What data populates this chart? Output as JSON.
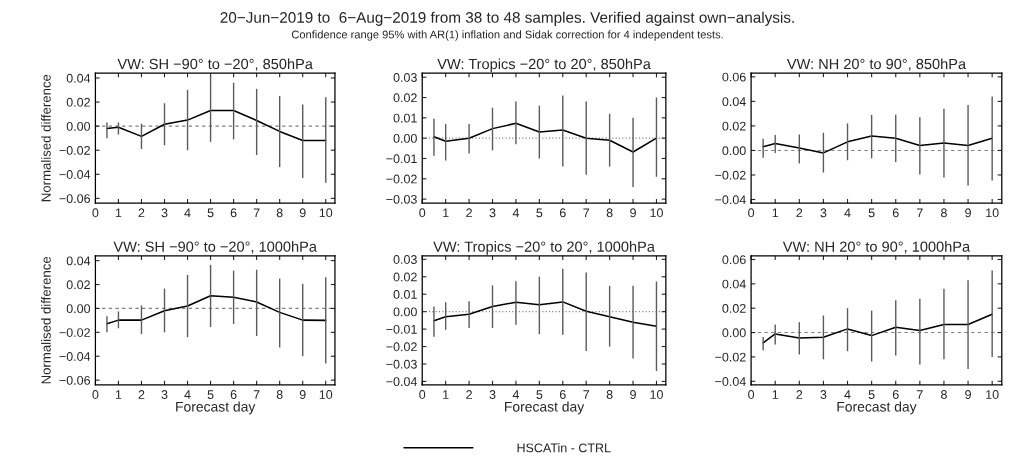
{
  "chart_data": [
    {
      "type": "line",
      "title": "VW: SH −90° to −20°, 850hPa",
      "ylabel": "Normalised difference",
      "annotations": [
        "20−Jun−2019 to  6−Aug−2019 from 38 to 48 samples. Verified against own−analysis.",
        "Confidence range 95% with AR(1) inflation and Sidak correction for 4 independent tests."
      ],
      "legend": "bottom",
      "grid": false,
      "marker": "none",
      "line_style": "solid",
      "x": [
        0.5,
        1,
        2,
        3,
        4,
        5,
        6,
        7,
        8,
        9,
        10
      ],
      "series": [
        {
          "name": "HSCATin - CTRL",
          "color": "#000000",
          "values": [
            -0.002,
            -0.001,
            -0.0085,
            0.0016,
            0.005,
            0.013,
            0.013,
            0.0047,
            -0.0044,
            -0.012,
            -0.012
          ],
          "errors": [
            [
              -0.01,
              0.003
            ],
            [
              -0.007,
              0.003
            ],
            [
              -0.019,
              0.002
            ],
            [
              -0.016,
              0.019
            ],
            [
              -0.02,
              0.03
            ],
            [
              -0.013,
              0.042
            ],
            [
              -0.011,
              0.036
            ],
            [
              -0.024,
              0.031
            ],
            [
              -0.034,
              0.025
            ],
            [
              -0.043,
              0.018
            ],
            [
              -0.047,
              0.024
            ]
          ]
        }
      ],
      "xlim": [
        0,
        10.4
      ],
      "xticks": [
        0,
        1,
        2,
        3,
        4,
        5,
        6,
        7,
        8,
        9,
        10
      ],
      "ylim": [
        -0.064,
        0.044
      ],
      "yticks": [
        {
          "value": -0.06,
          "label": "−0.06"
        },
        {
          "value": -0.04,
          "label": "−0.04"
        },
        {
          "value": -0.02,
          "label": "−0.02"
        },
        {
          "value": 0,
          "label": "0.00"
        },
        {
          "value": 0.02,
          "label": "0.02"
        },
        {
          "value": 0.04,
          "label": "0.04"
        }
      ],
      "ref_lines": [
        {
          "axis": "y",
          "value": 0,
          "color": "#808080",
          "line_style": "dashed"
        }
      ]
    },
    {
      "type": "line",
      "title": "VW: Tropics −20° to 20°, 850hPa",
      "grid": false,
      "marker": "none",
      "line_style": "solid",
      "x": [
        0.5,
        1,
        2,
        3,
        4,
        5,
        6,
        7,
        8,
        9,
        10
      ],
      "series": [
        {
          "color": "#000000",
          "values": [
            0.0007,
            -0.0015,
            0.0,
            0.0047,
            0.0073,
            0.003,
            0.004,
            0.0,
            -0.001,
            -0.0068,
            0.0
          ],
          "errors": [
            [
              -0.0086,
              0.0096
            ],
            [
              -0.011,
              0.007
            ],
            [
              -0.0075,
              0.007
            ],
            [
              -0.006,
              0.015
            ],
            [
              -0.003,
              0.018
            ],
            [
              -0.01,
              0.016
            ],
            [
              -0.014,
              0.021
            ],
            [
              -0.018,
              0.018
            ],
            [
              -0.014,
              0.012
            ],
            [
              -0.024,
              0.01
            ],
            [
              -0.019,
              0.02
            ]
          ]
        }
      ],
      "xlim": [
        0,
        10.4
      ],
      "xticks": [
        0,
        1,
        2,
        3,
        4,
        5,
        6,
        7,
        8,
        9,
        10
      ],
      "ylim": [
        -0.032,
        0.032
      ],
      "yticks": [
        {
          "value": -0.03,
          "label": "−0.03"
        },
        {
          "value": -0.02,
          "label": "−0.02"
        },
        {
          "value": -0.01,
          "label": "−0.01"
        },
        {
          "value": 0,
          "label": "0.00"
        },
        {
          "value": 0.01,
          "label": "0.01"
        },
        {
          "value": 0.02,
          "label": "0.02"
        },
        {
          "value": 0.03,
          "label": "0.03"
        }
      ],
      "ref_lines": [
        {
          "axis": "y",
          "value": 0,
          "color": "#808080",
          "line_style": "dotted"
        }
      ]
    },
    {
      "type": "line",
      "title": "VW: NH 20° to 90°, 850hPa",
      "grid": false,
      "marker": "none",
      "line_style": "solid",
      "x": [
        0.5,
        1,
        2,
        3,
        4,
        5,
        6,
        7,
        8,
        9,
        10
      ],
      "series": [
        {
          "color": "#000000",
          "values": [
            0.003,
            0.0057,
            0.002,
            -0.002,
            0.007,
            0.0117,
            0.01,
            0.004,
            0.006,
            0.004,
            0.01
          ],
          "errors": [
            [
              -0.006,
              0.0095
            ],
            [
              -0.002,
              0.0125
            ],
            [
              -0.0106,
              0.013
            ],
            [
              -0.018,
              0.0144
            ],
            [
              -0.008,
              0.022
            ],
            [
              -0.0065,
              0.029
            ],
            [
              -0.0095,
              0.029
            ],
            [
              -0.0196,
              0.027
            ],
            [
              -0.022,
              0.034
            ],
            [
              -0.0286,
              0.037
            ],
            [
              -0.0245,
              0.044
            ]
          ]
        }
      ],
      "xlim": [
        0,
        10.4
      ],
      "xticks": [
        0,
        1,
        2,
        3,
        4,
        5,
        6,
        7,
        8,
        9,
        10
      ],
      "ylim": [
        -0.043,
        0.063
      ],
      "yticks": [
        {
          "value": -0.04,
          "label": "−0.04"
        },
        {
          "value": -0.02,
          "label": "−0.02"
        },
        {
          "value": 0,
          "label": "0.00"
        },
        {
          "value": 0.02,
          "label": "0.02"
        },
        {
          "value": 0.04,
          "label": "0.04"
        },
        {
          "value": 0.06,
          "label": "0.06"
        }
      ],
      "ref_lines": [
        {
          "axis": "y",
          "value": 0,
          "color": "#808080",
          "line_style": "dashed"
        }
      ]
    },
    {
      "type": "line",
      "title": "VW: SH −90° to −20°, 1000hPa",
      "xlabel": "Forecast day",
      "ylabel": "Normalised difference",
      "grid": false,
      "marker": "none",
      "line_style": "solid",
      "x": [
        0.5,
        1,
        2,
        3,
        4,
        5,
        6,
        7,
        8,
        9,
        10
      ],
      "series": [
        {
          "color": "#000000",
          "values": [
            -0.0128,
            -0.0098,
            -0.0098,
            -0.002,
            0.002,
            0.0106,
            0.0093,
            0.0054,
            -0.0033,
            -0.0098,
            -0.01
          ],
          "errors": [
            [
              -0.02,
              -0.0065
            ],
            [
              -0.0166,
              -0.0025
            ],
            [
              -0.0215,
              0.0025
            ],
            [
              -0.02,
              0.0166
            ],
            [
              -0.024,
              0.028
            ],
            [
              -0.0155,
              0.0365
            ],
            [
              -0.013,
              0.0316
            ],
            [
              -0.023,
              0.0324
            ],
            [
              -0.0327,
              0.025
            ],
            [
              -0.04,
              0.0207
            ],
            [
              -0.046,
              0.026
            ]
          ]
        }
      ],
      "xlim": [
        0,
        10.4
      ],
      "xticks": [
        0,
        1,
        2,
        3,
        4,
        5,
        6,
        7,
        8,
        9,
        10
      ],
      "ylim": [
        -0.064,
        0.044
      ],
      "yticks": [
        {
          "value": -0.06,
          "label": "−0.06"
        },
        {
          "value": -0.04,
          "label": "−0.04"
        },
        {
          "value": -0.02,
          "label": "−0.02"
        },
        {
          "value": 0,
          "label": "0.00"
        },
        {
          "value": 0.02,
          "label": "0.02"
        },
        {
          "value": 0.04,
          "label": "0.04"
        }
      ],
      "ref_lines": [
        {
          "axis": "y",
          "value": 0,
          "color": "#808080",
          "line_style": "dashed"
        }
      ]
    },
    {
      "type": "line",
      "title": "VW: Tropics −20° to 20°, 1000hPa",
      "xlabel": "Forecast day",
      "grid": false,
      "marker": "none",
      "line_style": "solid",
      "x": [
        0.5,
        1,
        2,
        3,
        4,
        5,
        6,
        7,
        8,
        9,
        10
      ],
      "series": [
        {
          "color": "#000000",
          "values": [
            -0.0052,
            -0.0029,
            -0.0015,
            0.0029,
            0.0054,
            0.004,
            0.0056,
            0.0002,
            -0.0029,
            -0.0061,
            -0.0084
          ],
          "errors": [
            [
              -0.0144,
              0.0029
            ],
            [
              -0.0104,
              0.0054
            ],
            [
              -0.0094,
              0.006
            ],
            [
              -0.0094,
              0.015
            ],
            [
              -0.0075,
              0.0175
            ],
            [
              -0.0129,
              0.02
            ],
            [
              -0.0132,
              0.0246
            ],
            [
              -0.0225,
              0.0225
            ],
            [
              -0.02,
              0.0148
            ],
            [
              -0.0269,
              0.0148
            ],
            [
              -0.034,
              0.0173
            ]
          ]
        }
      ],
      "xlim": [
        0,
        10.4
      ],
      "xticks": [
        0,
        1,
        2,
        3,
        4,
        5,
        6,
        7,
        8,
        9,
        10
      ],
      "ylim": [
        -0.042,
        0.032
      ],
      "yticks": [
        {
          "value": -0.04,
          "label": "−0.04"
        },
        {
          "value": -0.03,
          "label": "−0.03"
        },
        {
          "value": -0.02,
          "label": "−0.02"
        },
        {
          "value": -0.01,
          "label": "−0.01"
        },
        {
          "value": 0,
          "label": "0.00"
        },
        {
          "value": 0.01,
          "label": "0.01"
        },
        {
          "value": 0.02,
          "label": "0.02"
        },
        {
          "value": 0.03,
          "label": "0.03"
        }
      ],
      "ref_lines": [
        {
          "axis": "y",
          "value": 0,
          "color": "#808080",
          "line_style": "dotted"
        }
      ]
    },
    {
      "type": "line",
      "title": "VW: NH 20° to 90°, 1000hPa",
      "xlabel": "Forecast day",
      "grid": false,
      "marker": "none",
      "line_style": "solid",
      "x": [
        0.5,
        1,
        2,
        3,
        4,
        5,
        6,
        7,
        8,
        9,
        10
      ],
      "series": [
        {
          "color": "#000000",
          "values": [
            -0.0085,
            -0.0011,
            -0.0044,
            -0.0038,
            0.003,
            -0.0025,
            0.0044,
            0.0016,
            0.0066,
            0.0066,
            0.015
          ],
          "errors": [
            [
              -0.0145,
              -0.0036
            ],
            [
              -0.0099,
              0.0066
            ],
            [
              -0.018,
              0.0085
            ],
            [
              -0.022,
              0.014
            ],
            [
              -0.0153,
              0.02
            ],
            [
              -0.0238,
              0.018
            ],
            [
              -0.0189,
              0.0266
            ],
            [
              -0.0263,
              0.0277
            ],
            [
              -0.022,
              0.036
            ],
            [
              -0.03,
              0.043
            ],
            [
              -0.02,
              0.051
            ]
          ]
        }
      ],
      "xlim": [
        0,
        10.4
      ],
      "xticks": [
        0,
        1,
        2,
        3,
        4,
        5,
        6,
        7,
        8,
        9,
        10
      ],
      "ylim": [
        -0.043,
        0.063
      ],
      "yticks": [
        {
          "value": -0.04,
          "label": "−0.04"
        },
        {
          "value": -0.02,
          "label": "−0.02"
        },
        {
          "value": 0,
          "label": "0.00"
        },
        {
          "value": 0.02,
          "label": "0.02"
        },
        {
          "value": 0.04,
          "label": "0.04"
        },
        {
          "value": 0.06,
          "label": "0.06"
        }
      ],
      "ref_lines": [
        {
          "axis": "y",
          "value": 0,
          "color": "#808080",
          "line_style": "dashed"
        }
      ]
    }
  ]
}
